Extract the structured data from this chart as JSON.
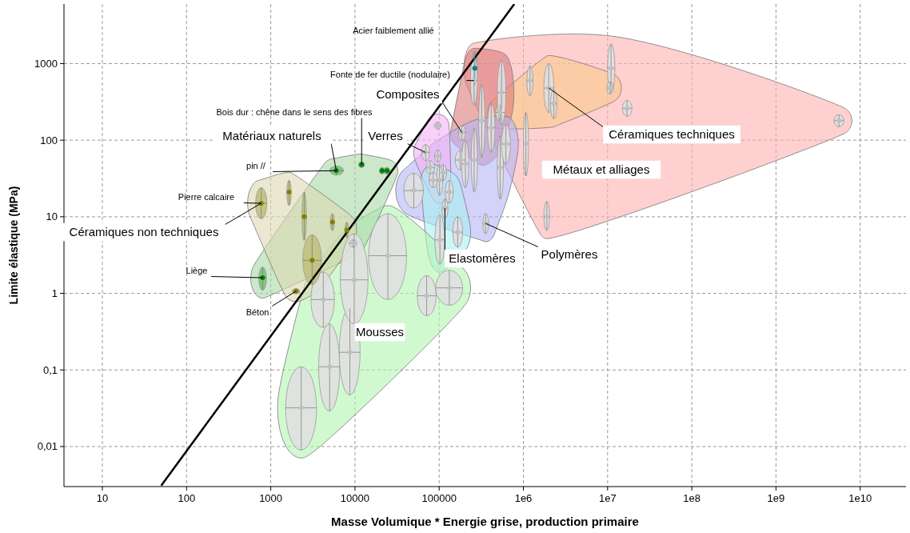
{
  "chart_data": {
    "type": "scatter",
    "xlabel": "Masse Volumique * Energie grise, production primaire",
    "ylabel": "Limite élastique (MPa)",
    "log": "xy",
    "grid": true,
    "xlim": [
      3.5,
      35000000000
    ],
    "ylim": [
      0.003,
      6000
    ],
    "xticks": [
      10,
      100,
      1000,
      10000,
      100000,
      {
        "value": 1000000,
        "label": "1e6"
      },
      {
        "value": 10000000,
        "label": "1e7"
      },
      {
        "value": 100000000,
        "label": "1e8"
      },
      {
        "value": 1000000000,
        "label": "1e9"
      },
      {
        "value": 10000000000,
        "label": "1e10"
      }
    ],
    "yticks": [
      {
        "value": 0.01,
        "label": "0,01"
      },
      {
        "value": 0.1,
        "label": "0,1"
      },
      1,
      10,
      100,
      1000
    ],
    "series": [
      {
        "color": "#ffb0b0",
        "colors": [
          "#c0c0c0",
          "#c0c0c0",
          "#c0c0c0",
          "#c0c0c0",
          "#c0c0c0",
          "#c0c0c0",
          "#008080"
        ],
        "x": [
          5600000000,
          17000000,
          11000000,
          1900000,
          1070000,
          1200000,
          265000
        ],
        "values": [
          180,
          260,
          870,
          10,
          90,
          600,
          870
        ],
        "xerrors": [
          [
            4900000000,
            6400000000
          ],
          [
            15000000,
            19500000
          ],
          [
            10000000,
            12200000
          ],
          [
            1750000,
            2050000
          ],
          [
            1000000,
            1150000
          ],
          [
            1100000,
            1300000
          ],
          [
            245000,
            285000
          ]
        ],
        "errors": [
          [
            150,
            215
          ],
          [
            205,
            330
          ],
          [
            420,
            1800
          ],
          [
            6.6,
            16
          ],
          [
            34,
            230
          ],
          [
            380,
            930
          ],
          [
            520,
            1460
          ]
        ]
      },
      {
        "color": "#f9c98b",
        "colors": [
          "#c0c0c0",
          "#c0c0c0",
          "#c0c0c0",
          "#c0c0c0"
        ],
        "x": [
          2000000,
          2300000,
          10700000,
          530000
        ],
        "values": [
          480,
          300,
          480,
          230
        ],
        "xerrors": [
          [
            1750000,
            2300000
          ],
          [
            2100000,
            2500000
          ],
          [
            9800000,
            11700000
          ],
          [
            470000,
            600000
          ]
        ],
        "errors": [
          [
            230,
            1000
          ],
          [
            190,
            460
          ],
          [
            400,
            580
          ],
          [
            180,
            290
          ]
        ]
      },
      {
        "color": "#dc7a7a",
        "colors": [
          "#c0c0c0",
          "#c0c0c0",
          "#c0c0c0",
          "#c0c0c0",
          "#c0c0c0"
        ],
        "x": [
          260000,
          550000,
          320000,
          415000,
          186000
        ],
        "values": [
          600,
          420,
          180,
          145,
          126
        ],
        "xerrors": [
          [
            235000,
            285000
          ],
          [
            490000,
            620000
          ],
          [
            295000,
            350000
          ],
          [
            375000,
            460000
          ],
          [
            170000,
            205000
          ]
        ],
        "errors": [
          [
            290,
            1240
          ],
          [
            160,
            1100
          ],
          [
            60,
            530
          ],
          [
            70,
            300
          ],
          [
            100,
            155
          ]
        ]
      },
      {
        "color": "#b4b4f8",
        "colors": [
          "#c0c0c0",
          "#c0c0c0",
          "#c0c0c0",
          "#c0c0c0",
          "#c0c0c0",
          "#c0c0c0",
          "#c0c0c0",
          "#c0c0c0",
          "#c0c0c0",
          "#c0c0c0"
        ],
        "x": [
          50000,
          78000,
          96000,
          112000,
          178000,
          260000,
          530000,
          355000,
          205000,
          620000
        ],
        "values": [
          22,
          44,
          62,
          38,
          55,
          55,
          44,
          8.2,
          49,
          89
        ],
        "xerrors": [
          [
            38000,
            65000
          ],
          [
            70000,
            88000
          ],
          [
            88000,
            105000
          ],
          [
            103000,
            122000
          ],
          [
            155000,
            205000
          ],
          [
            240000,
            285000
          ],
          [
            490000,
            580000
          ],
          [
            330000,
            385000
          ],
          [
            185000,
            225000
          ],
          [
            550000,
            700000
          ]
        ],
        "errors": [
          [
            13,
            37
          ],
          [
            36,
            54
          ],
          [
            52,
            74
          ],
          [
            30,
            48
          ],
          [
            41,
            73
          ],
          [
            21,
            143
          ],
          [
            17,
            115
          ],
          [
            6,
            11
          ],
          [
            24,
            100
          ],
          [
            49,
            160
          ]
        ]
      },
      {
        "color": "#f5b0f5",
        "colors": [
          "#c0c0c0",
          "#c0c0c0",
          "#c0c0c0"
        ],
        "x": [
          96000,
          69000,
          101000
        ],
        "values": [
          155,
          69,
          30
        ],
        "xerrors": [
          [
            88000,
            105000
          ],
          [
            62000,
            77000
          ],
          [
            93000,
            110000
          ]
        ],
        "errors": [
          [
            140,
            172
          ],
          [
            54,
            88
          ],
          [
            19,
            48
          ]
        ]
      },
      {
        "color": "#a8f0f0",
        "colors": [
          "#c0c0c0",
          "#c0c0c0",
          "#c0c0c0",
          "#c0c0c0",
          "#c0c0c0"
        ],
        "x": [
          102000,
          132000,
          85000,
          117000,
          166000
        ],
        "values": [
          5,
          21,
          30,
          13,
          6.3
        ],
        "xerrors": [
          [
            89000,
            116000
          ],
          [
            118000,
            147000
          ],
          [
            76000,
            95000
          ],
          [
            108000,
            127000
          ],
          [
            145000,
            190000
          ]
        ],
        "errors": [
          [
            2.4,
            10.5
          ],
          [
            15,
            30
          ],
          [
            24,
            38
          ],
          [
            9.5,
            17
          ],
          [
            4,
            10
          ]
        ]
      },
      {
        "color": "#b3f5b0",
        "colors": [
          "#c0c0c0",
          "#c0c0c0",
          "#c0c0c0",
          "#c0c0c0",
          "#c0c0c0",
          "#c0c0c0",
          "#c0c0c0",
          "#c0c0c0"
        ],
        "x": [
          2300,
          5000,
          8700,
          4200,
          9800,
          24600,
          71000,
          132000
        ],
        "values": [
          0.032,
          0.11,
          0.17,
          0.83,
          1.5,
          3.1,
          0.93,
          1.18
        ],
        "xerrors": [
          [
            1500,
            3500
          ],
          [
            3700,
            6600
          ],
          [
            6500,
            11500
          ],
          [
            3000,
            5700
          ],
          [
            6700,
            14300
          ],
          [
            14500,
            41000
          ],
          [
            55000,
            92000
          ],
          [
            91000,
            190000
          ]
        ],
        "errors": [
          [
            0.009,
            0.11
          ],
          [
            0.029,
            0.4
          ],
          [
            0.047,
            0.63
          ],
          [
            0.36,
            1.9
          ],
          [
            0.4,
            6
          ],
          [
            0.83,
            11
          ],
          [
            0.51,
            1.7
          ],
          [
            0.7,
            2
          ]
        ]
      },
      {
        "color": "#a8d8a8",
        "colors": [
          "#008000",
          "#008000",
          "#008000",
          "#008000",
          "#008000",
          "#c0c0c0"
        ],
        "x": [
          6000,
          12000,
          21000,
          24000,
          800,
          9500
        ],
        "values": [
          40,
          48,
          40,
          40,
          1.6,
          4.5
        ],
        "xerrors": [
          [
            5000,
            7300
          ],
          [
            11000,
            13000
          ],
          [
            19500,
            22500
          ],
          [
            22000,
            26000
          ],
          [
            720,
            890
          ],
          [
            8500,
            10500
          ]
        ],
        "errors": [
          [
            35,
            46
          ],
          [
            44,
            52
          ],
          [
            36,
            44
          ],
          [
            36,
            44
          ],
          [
            1.1,
            2.2
          ],
          [
            4,
            5
          ]
        ]
      },
      {
        "color": "#dcd8b0",
        "colors": [
          "#808000",
          "#808000",
          "#808000",
          "#808000",
          "#808000",
          "#808000",
          "#808000"
        ],
        "x": [
          770,
          2500,
          3100,
          5400,
          8000,
          2000,
          1650
        ],
        "values": [
          15,
          10,
          2.7,
          8.5,
          6.7,
          1.07,
          21
        ],
        "xerrors": [
          [
            660,
            900
          ],
          [
            2350,
            2650
          ],
          [
            2400,
            4000
          ],
          [
            5100,
            5700
          ],
          [
            7600,
            8400
          ],
          [
            1800,
            2200
          ],
          [
            1550,
            1750
          ]
        ],
        "errors": [
          [
            9.4,
            24
          ],
          [
            4.9,
            21
          ],
          [
            1.3,
            5.8
          ],
          [
            6.6,
            11
          ],
          [
            5.3,
            8.5
          ],
          [
            0.99,
            1.15
          ],
          [
            14,
            30
          ]
        ]
      },
      {
        "type": "line",
        "color": "#000000",
        "x": [
          50,
          780000
        ],
        "values": [
          0.0031,
          6000
        ]
      }
    ],
    "annotations": [
      "Acier faiblement allié",
      {
        "text": "Fonte de fer ductile (nodulaire)",
        "x": 260000,
        "y": 600
      },
      {
        "text": "Composites",
        "x": 186000,
        "y": 126
      },
      {
        "text": "Bois dur : chêne dans le sens des fibres",
        "x": 12000,
        "y": 48
      },
      {
        "text": "Matériaux naturels",
        "x": 6000,
        "y": 40
      },
      {
        "text": "Verres",
        "x": 69000,
        "y": 69
      },
      {
        "text": "pin //",
        "x": 6000,
        "y": 40
      },
      {
        "text": "Pierre calcaire",
        "x": 770,
        "y": 15
      },
      {
        "text": "Céramiques non techniques",
        "x": 770,
        "y": 15
      },
      {
        "text": "Liège",
        "x": 800,
        "y": 1.6
      },
      {
        "text": "Béton",
        "x": 2000,
        "y": 1.07
      },
      "Mousses",
      {
        "text": "Elastomères",
        "x": 117000,
        "y": 13
      },
      {
        "text": "Polymères",
        "x": 355000,
        "y": 8.2
      },
      "Métaux et alliages",
      {
        "text": "Céramiques techniques",
        "x": 2000000,
        "y": 480
      }
    ]
  }
}
